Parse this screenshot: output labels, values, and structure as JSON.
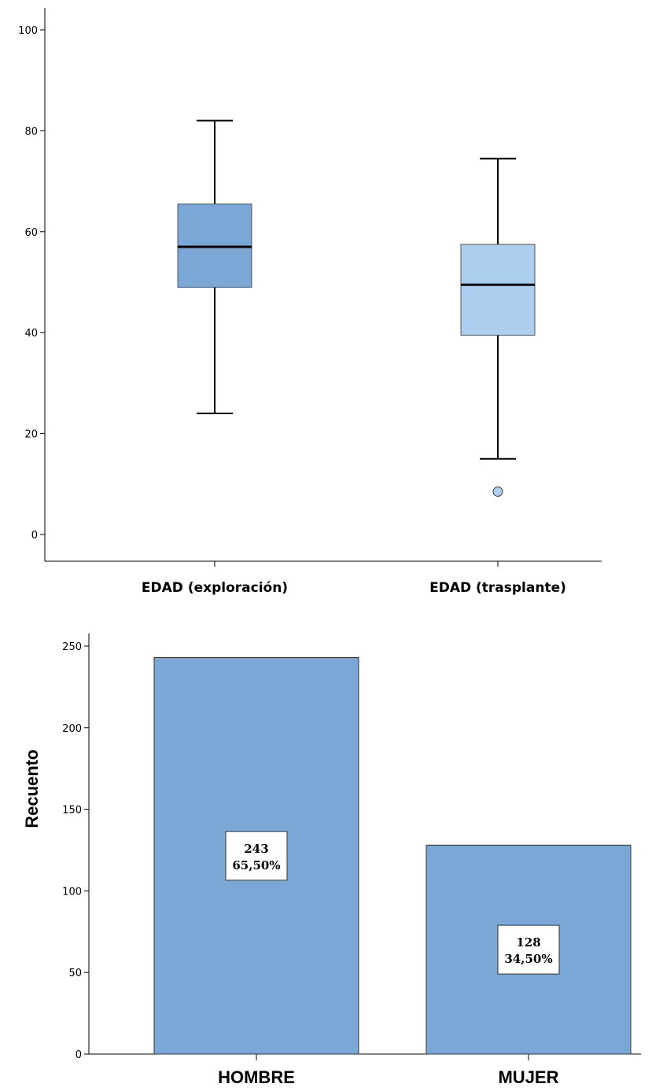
{
  "chart_data": [
    {
      "type": "boxplot",
      "title": "",
      "xlabel": "",
      "ylabel": "",
      "ylim": [
        -5,
        105
      ],
      "yticks": [
        "0",
        "20",
        "40",
        "60",
        "80",
        "100"
      ],
      "categories": [
        "EDAD (exploración)",
        "EDAD (trasplante)"
      ],
      "boxes": [
        {
          "min": 24,
          "q1": 49,
          "median": 57,
          "q3": 65.5,
          "max": 82,
          "outliers": [],
          "color": "#7BA7D6"
        },
        {
          "min": 15,
          "q1": 39.5,
          "median": 49.5,
          "q3": 57.5,
          "max": 74.5,
          "outliers": [
            8.5
          ],
          "color": "#ADCFEF"
        }
      ],
      "grid": false,
      "legend": "none"
    },
    {
      "type": "bar",
      "title": "",
      "xlabel": "",
      "ylabel": "Recuento",
      "ylim": [
        0,
        255
      ],
      "yticks": [
        "0",
        "50",
        "100",
        "150",
        "200",
        "250"
      ],
      "categories": [
        "HOMBRE",
        "MUJER"
      ],
      "values": [
        243,
        128
      ],
      "data_labels": [
        {
          "count": "243",
          "percent": "65,50%"
        },
        {
          "count": "128",
          "percent": "34,50%"
        }
      ],
      "bar_color": "#7BA7D6",
      "grid": false,
      "legend": "none"
    }
  ]
}
